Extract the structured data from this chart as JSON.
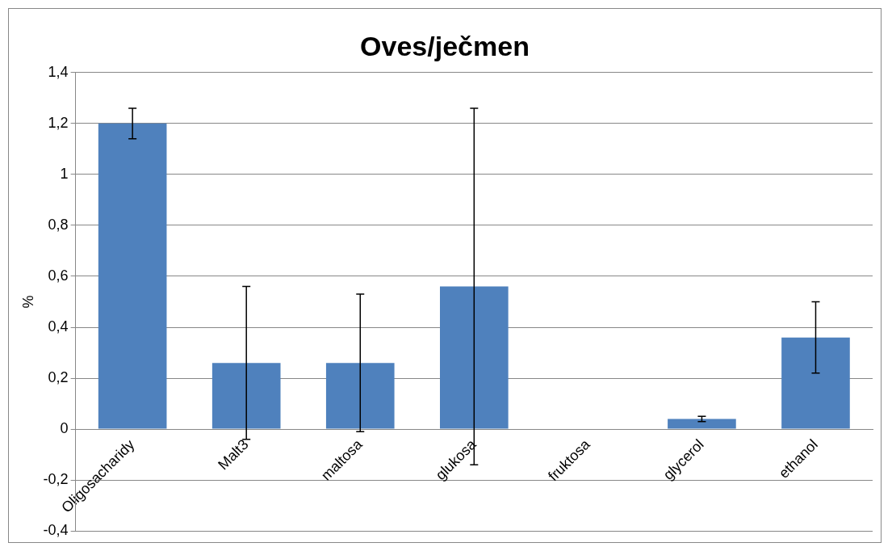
{
  "chart_data": {
    "type": "bar",
    "title": "Oves/ječmen",
    "ylabel": "%",
    "categories": [
      "Oligosacharidy",
      "Malt3",
      "maltosa",
      "glukosa",
      "fruktosa",
      "glycerol",
      "ethanol"
    ],
    "values": [
      1.2,
      0.26,
      0.26,
      0.56,
      0,
      0.04,
      0.36
    ],
    "errors": [
      0.06,
      0.3,
      0.27,
      0.7,
      null,
      0.01,
      0.14
    ],
    "color": "#4f81bd",
    "ylim": [
      -0.4,
      1.4
    ],
    "yticks": [
      {
        "value": -0.4,
        "label": "-0,4"
      },
      {
        "value": -0.2,
        "label": "-0,2"
      },
      0,
      {
        "value": 0.2,
        "label": "0,2"
      },
      {
        "value": 0.4,
        "label": "0,4"
      },
      {
        "value": 0.6,
        "label": "0,6"
      },
      {
        "value": 0.8,
        "label": "0,8"
      },
      1,
      {
        "value": 1.2,
        "label": "1,2"
      },
      {
        "value": 1.4,
        "label": "1,4"
      }
    ],
    "grid": "y",
    "legend": false
  }
}
